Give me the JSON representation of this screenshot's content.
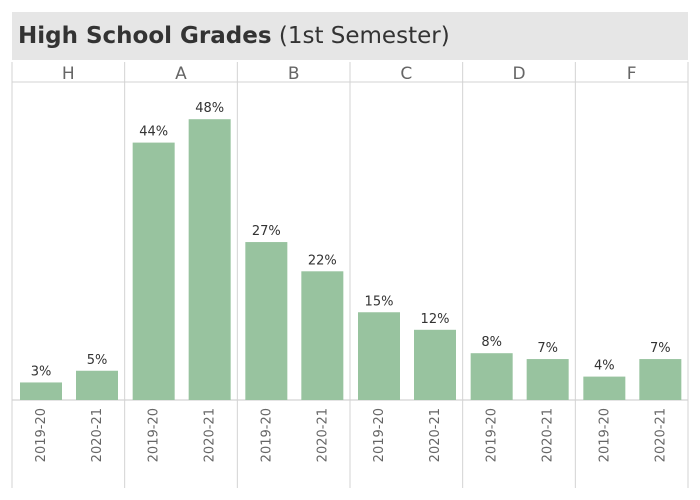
{
  "title": {
    "main": "High School Grades",
    "sub": "(1st Semester)"
  },
  "colors": {
    "bar": "#98c39f",
    "title_background": "#e6e6e6",
    "divider": "#d3d3d3"
  },
  "chart_data": {
    "type": "bar",
    "title": "High School Grades (1st Semester)",
    "xlabel": "",
    "ylabel": "",
    "value_format": "percent",
    "grid": false,
    "legend": "none",
    "ylim": [
      0,
      50
    ],
    "grade_groups": [
      "H",
      "A",
      "B",
      "C",
      "D",
      "F"
    ],
    "years": [
      "2019-20",
      "2020-21"
    ],
    "series": [
      {
        "name": "2019-20",
        "values": [
          3,
          44,
          27,
          15,
          8,
          4
        ]
      },
      {
        "name": "2020-21",
        "values": [
          5,
          48,
          22,
          12,
          7,
          7
        ]
      }
    ]
  }
}
